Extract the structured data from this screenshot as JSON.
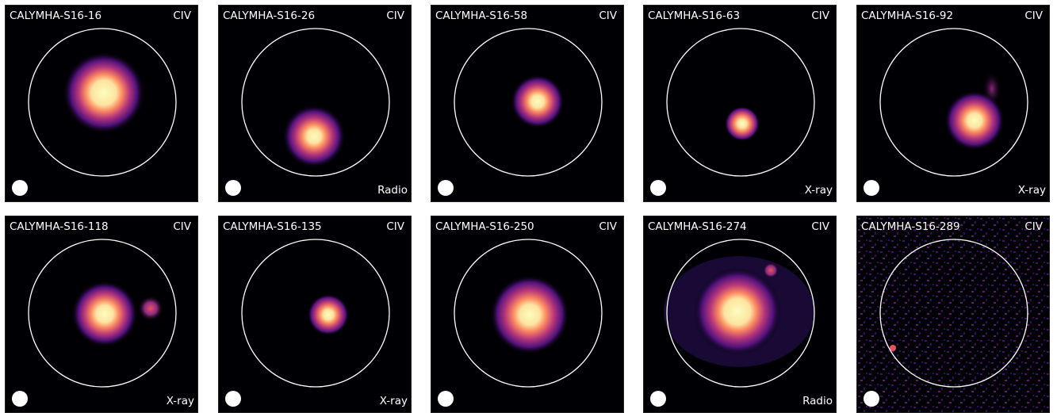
{
  "panels": [
    {
      "name": "CALYMHA-S16-16",
      "line": "CIV",
      "tag": ""
    },
    {
      "name": "CALYMHA-S16-26",
      "line": "CIV",
      "tag": "Radio"
    },
    {
      "name": "CALYMHA-S16-58",
      "line": "CIV",
      "tag": ""
    },
    {
      "name": "CALYMHA-S16-63",
      "line": "CIV",
      "tag": "X-ray"
    },
    {
      "name": "CALYMHA-S16-92",
      "line": "CIV",
      "tag": "X-ray"
    },
    {
      "name": "CALYMHA-S16-118",
      "line": "CIV",
      "tag": "X-ray"
    },
    {
      "name": "CALYMHA-S16-135",
      "line": "CIV",
      "tag": "X-ray"
    },
    {
      "name": "CALYMHA-S16-250",
      "line": "CIV",
      "tag": ""
    },
    {
      "name": "CALYMHA-S16-274",
      "line": "CIV",
      "tag": "Radio"
    },
    {
      "name": "CALYMHA-S16-289",
      "line": "CIV",
      "tag": ""
    }
  ],
  "colors": {
    "background": "#000004",
    "faint": "#3b0f70",
    "mid": "#b5367a",
    "bright": "#fb8861",
    "core": "#fcfdbf",
    "ring": "#ffffff"
  }
}
